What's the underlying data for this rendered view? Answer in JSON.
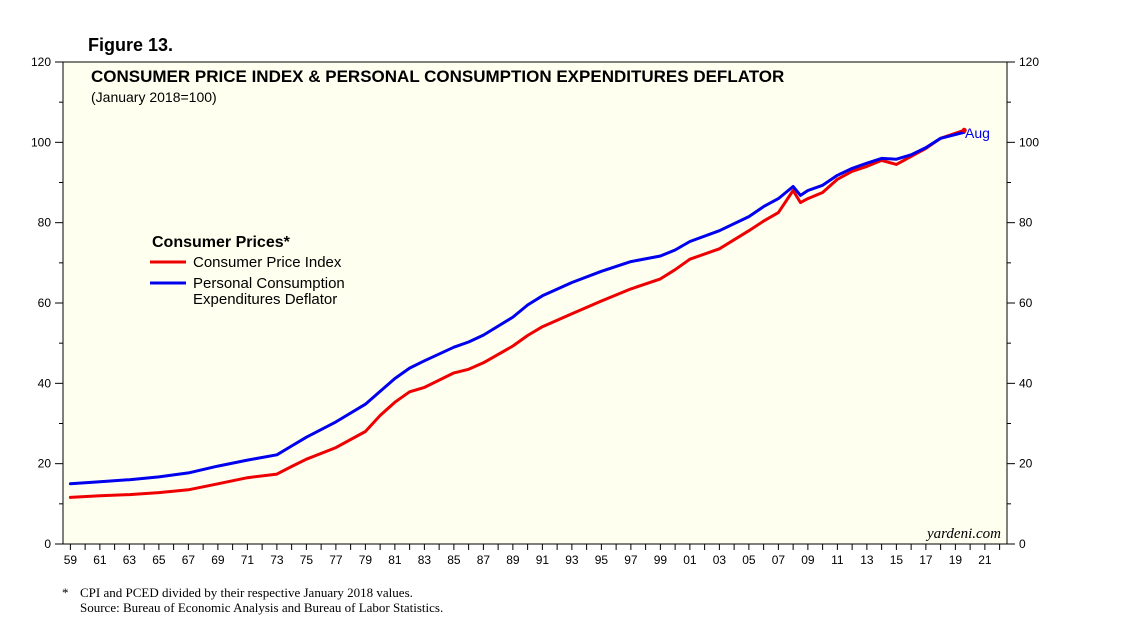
{
  "figure_label": "Figure 13.",
  "footnote": {
    "marker": "*",
    "note": "CPI and PCED divided by their respective January 2018 values.",
    "source": "Source: Bureau of Economic Analysis and Bureau of Labor Statistics."
  },
  "colors": {
    "background": "#fffff0",
    "cpi": "#ee0000",
    "pce": "#0000ee"
  },
  "chart_data": {
    "type": "line",
    "title": "CONSUMER PRICE INDEX & PERSONAL CONSUMPTION EXPENDITURES DEFLATOR",
    "subtitle": "(January 2018=100)",
    "xlabel": "",
    "ylabel": "",
    "xlim": [
      1958.5,
      2022.5
    ],
    "ylim": [
      0,
      120
    ],
    "y_ticks": [
      0,
      20,
      40,
      60,
      80,
      100,
      120
    ],
    "x_tick_labels": [
      "59",
      "61",
      "63",
      "65",
      "67",
      "69",
      "71",
      "73",
      "75",
      "77",
      "79",
      "81",
      "83",
      "85",
      "87",
      "89",
      "91",
      "93",
      "95",
      "97",
      "99",
      "01",
      "03",
      "05",
      "07",
      "09",
      "11",
      "13",
      "15",
      "17",
      "19",
      "21"
    ],
    "legend": {
      "title": "Consumer Prices*",
      "entries": [
        "Consumer Price Index",
        "Personal Consumption",
        "Expenditures Deflator"
      ],
      "placement": "upper-left"
    },
    "annotation": "Aug",
    "watermark": "yardeni.com",
    "series": [
      {
        "name": "Consumer Price Index",
        "color": "#ee0000",
        "x": [
          1959,
          1961,
          1963,
          1965,
          1967,
          1969,
          1971,
          1973,
          1974,
          1975,
          1977,
          1979,
          1980,
          1981,
          1982,
          1983,
          1985,
          1986,
          1987,
          1989,
          1990,
          1991,
          1993,
          1995,
          1997,
          1999,
          2000,
          2001,
          2003,
          2005,
          2006,
          2007,
          2008,
          2008.5,
          2009,
          2010,
          2011,
          2012,
          2013,
          2014,
          2015,
          2016,
          2017,
          2018,
          2019.6
        ],
        "values": [
          11.6,
          12.0,
          12.3,
          12.8,
          13.5,
          15.0,
          16.5,
          17.4,
          19.3,
          21.1,
          24.0,
          28.0,
          32.0,
          35.3,
          37.9,
          39.0,
          42.6,
          43.5,
          45.1,
          49.3,
          51.9,
          54.1,
          57.3,
          60.5,
          63.5,
          66.0,
          68.3,
          70.9,
          73.5,
          78.0,
          80.4,
          82.5,
          88.0,
          85.0,
          86.0,
          87.5,
          90.8,
          92.8,
          94.0,
          95.5,
          94.5,
          96.5,
          98.5,
          101.0,
          103.0
        ]
      },
      {
        "name": "Personal Consumption Expenditures Deflator",
        "color": "#0000ee",
        "x": [
          1959,
          1961,
          1963,
          1965,
          1967,
          1969,
          1971,
          1973,
          1974,
          1975,
          1977,
          1979,
          1980,
          1981,
          1982,
          1983,
          1985,
          1986,
          1987,
          1989,
          1990,
          1991,
          1993,
          1995,
          1997,
          1999,
          2000,
          2001,
          2003,
          2005,
          2006,
          2007,
          2008,
          2008.5,
          2009,
          2010,
          2011,
          2012,
          2013,
          2014,
          2015,
          2016,
          2017,
          2018,
          2019.6
        ],
        "values": [
          15.0,
          15.5,
          16.0,
          16.7,
          17.7,
          19.4,
          20.9,
          22.2,
          24.4,
          26.6,
          30.4,
          34.8,
          38.0,
          41.2,
          43.8,
          45.6,
          49.0,
          50.3,
          52.0,
          56.5,
          59.5,
          61.8,
          65.1,
          67.9,
          70.3,
          71.7,
          73.2,
          75.3,
          78.0,
          81.5,
          84.0,
          86.0,
          89.0,
          86.8,
          88.0,
          89.3,
          91.8,
          93.5,
          94.8,
          96.0,
          95.8,
          96.9,
          98.7,
          101.0,
          102.5
        ]
      }
    ]
  }
}
